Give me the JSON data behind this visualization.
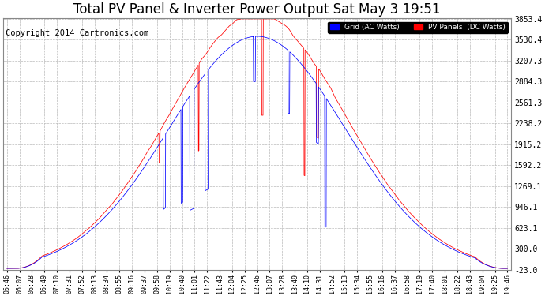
{
  "title": "Total PV Panel & Inverter Power Output Sat May 3 19:51",
  "copyright": "Copyright 2014 Cartronics.com",
  "legend_labels": [
    "Grid (AC Watts)",
    "PV Panels  (DC Watts)"
  ],
  "legend_colors": [
    "blue",
    "red"
  ],
  "yticks": [
    -23.0,
    300.0,
    623.1,
    946.1,
    1269.1,
    1592.2,
    1915.2,
    2238.2,
    2561.3,
    2884.3,
    3207.3,
    3530.4,
    3853.4
  ],
  "ylim_min": -23.0,
  "ylim_max": 3853.4,
  "background_color": "#ffffff",
  "plot_bg_color": "#ffffff",
  "grid_color": "#bbbbbb",
  "title_fontsize": 12,
  "copyright_fontsize": 7.5,
  "xtick_labels": [
    "05:46",
    "06:07",
    "06:28",
    "06:49",
    "07:10",
    "07:31",
    "07:52",
    "08:13",
    "08:34",
    "08:55",
    "09:16",
    "09:37",
    "09:58",
    "10:19",
    "10:40",
    "11:01",
    "11:22",
    "11:43",
    "12:04",
    "12:25",
    "12:46",
    "13:07",
    "13:28",
    "13:49",
    "14:10",
    "14:31",
    "14:52",
    "15:13",
    "15:34",
    "15:55",
    "16:16",
    "16:37",
    "16:58",
    "17:19",
    "17:40",
    "18:01",
    "18:22",
    "18:43",
    "19:04",
    "19:25",
    "19:46"
  ]
}
